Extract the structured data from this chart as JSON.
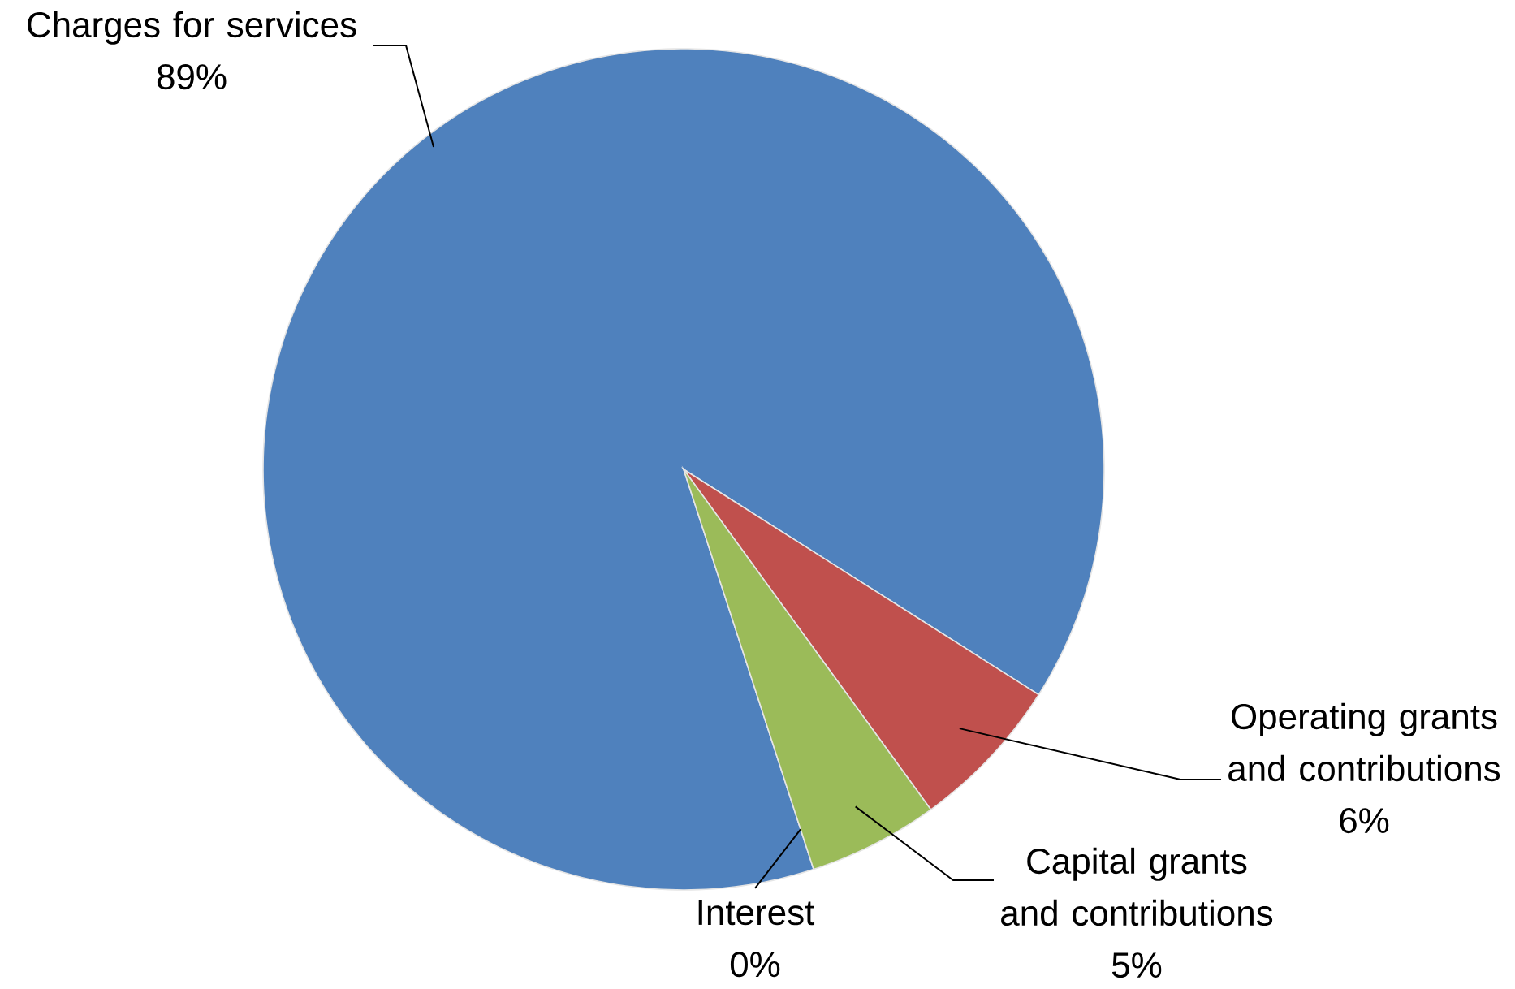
{
  "chart_data": {
    "type": "pie",
    "categories": [
      "Charges for services",
      "Operating grants and contributions",
      "Capital grants and contributions",
      "Interest"
    ],
    "values": [
      89,
      6,
      5,
      0
    ],
    "value_labels": [
      "89%",
      "6%",
      "5%",
      "0%"
    ],
    "colors": [
      "#4f81bd",
      "#c0504d",
      "#9bbb59",
      "#8064a2"
    ]
  }
}
